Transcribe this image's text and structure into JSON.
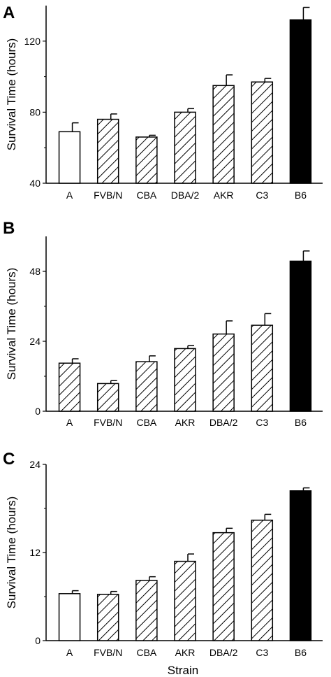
{
  "xlabel": "Strain",
  "colors": {
    "solid": "#000000",
    "open": "#ffffff",
    "hatch": "#000000"
  },
  "chart_data": [
    {
      "type": "bar",
      "panel": "A",
      "ylabel": "Survival Time (hours)",
      "xlabel": "",
      "ylim": [
        40,
        140
      ],
      "yticks": [
        40,
        80,
        120
      ],
      "categories": [
        "A",
        "FVB/N",
        "CBA",
        "DBA/2",
        "AKR",
        "C3",
        "B6"
      ],
      "values": [
        69,
        76,
        66,
        80,
        95,
        97,
        132
      ],
      "errors": [
        5,
        3,
        1,
        2,
        6,
        2,
        7
      ],
      "fills": [
        "open",
        "hatch",
        "hatch",
        "hatch",
        "hatch",
        "hatch",
        "solid"
      ],
      "grid": false
    },
    {
      "type": "bar",
      "panel": "B",
      "ylabel": "Survival Time (hours)",
      "xlabel": "",
      "ylim": [
        0,
        60
      ],
      "yticks": [
        0,
        24,
        48
      ],
      "categories": [
        "A",
        "FVB/N",
        "CBA",
        "AKR",
        "DBA/2",
        "C3",
        "B6"
      ],
      "values": [
        16.5,
        9.5,
        17,
        21.5,
        26.5,
        29.5,
        51.5
      ],
      "errors": [
        1.5,
        1,
        2,
        1,
        4.5,
        4,
        3.5
      ],
      "fills": [
        "hatch",
        "hatch",
        "hatch",
        "hatch",
        "hatch",
        "hatch",
        "solid"
      ],
      "grid": false
    },
    {
      "type": "bar",
      "panel": "C",
      "ylabel": "Survival Time (hours)",
      "xlabel": "Strain",
      "ylim": [
        0,
        24
      ],
      "yticks": [
        0,
        12,
        24
      ],
      "categories": [
        "A",
        "FVB/N",
        "CBA",
        "AKR",
        "DBA/2",
        "C3",
        "B6"
      ],
      "values": [
        6.4,
        6.3,
        8.2,
        10.8,
        14.7,
        16.4,
        20.4
      ],
      "errors": [
        0.4,
        0.4,
        0.5,
        1,
        0.6,
        0.8,
        0.4
      ],
      "fills": [
        "open",
        "hatch",
        "hatch",
        "hatch",
        "hatch",
        "hatch",
        "solid"
      ],
      "grid": false
    }
  ]
}
